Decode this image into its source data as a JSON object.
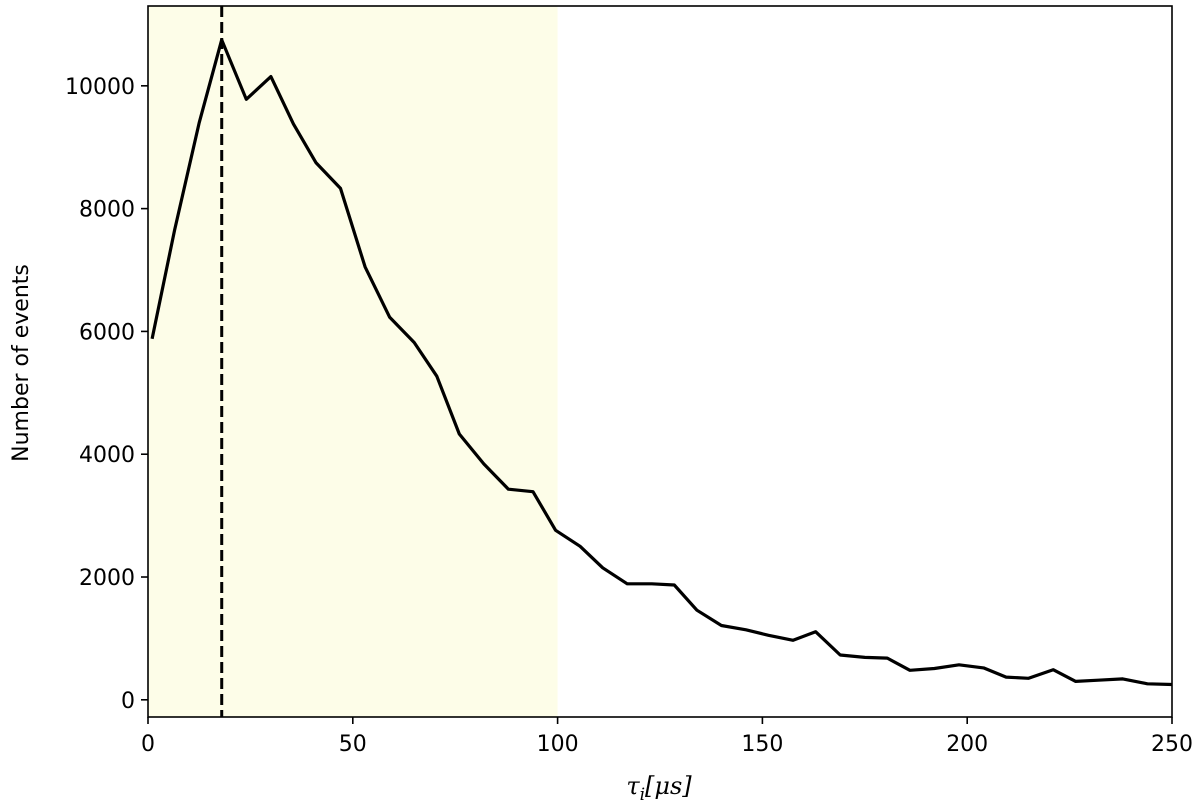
{
  "chart_data": {
    "type": "line",
    "title": "",
    "xlabel_parts": {
      "base": "τ",
      "sub": "i",
      "unit": "[μs]"
    },
    "ylabel": "Number of events",
    "xlim": [
      0,
      250
    ],
    "ylim": [
      -280,
      11300
    ],
    "xticks": [
      0,
      50,
      100,
      150,
      200,
      250
    ],
    "yticks": [
      0,
      2000,
      4000,
      6000,
      8000,
      10000
    ],
    "grid": false,
    "colors": {
      "line": "#000000",
      "shade": "#fdfde8",
      "marker_line": "#000000"
    },
    "shaded_region": {
      "x_start": 0,
      "x_end": 100
    },
    "vertical_marker": {
      "x": 18
    },
    "series": [
      {
        "x": [
          1,
          6.5,
          12.5,
          18,
          24,
          30,
          35.5,
          41,
          47,
          53,
          59,
          65,
          70.5,
          76,
          82,
          88,
          94,
          99.5,
          105.5,
          111,
          117,
          123,
          128.5,
          134,
          140,
          146,
          151.5,
          157.5,
          163,
          169,
          175,
          180.5,
          186,
          192,
          198,
          204,
          209.5,
          215,
          221,
          226.5,
          232,
          238,
          244,
          250
        ],
        "y": [
          5880,
          7650,
          9400,
          10750,
          9780,
          10150,
          9380,
          8750,
          8330,
          7050,
          6230,
          5820,
          5270,
          4330,
          3840,
          3430,
          3390,
          2760,
          2500,
          2150,
          1890,
          1890,
          1870,
          1460,
          1210,
          1140,
          1050,
          970,
          1110,
          730,
          690,
          680,
          480,
          510,
          570,
          520,
          370,
          350,
          490,
          300,
          320,
          340,
          260,
          250
        ]
      }
    ]
  }
}
